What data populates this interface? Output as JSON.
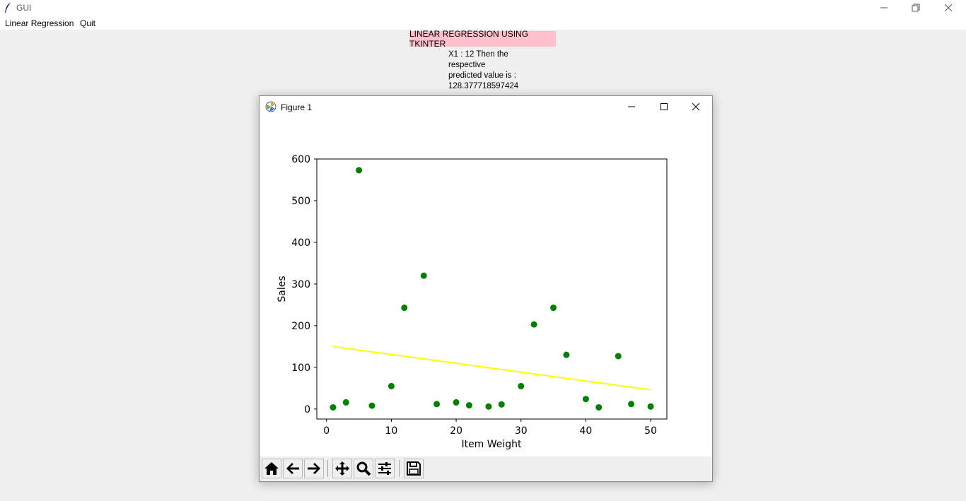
{
  "window": {
    "title": "GUI"
  },
  "menu": {
    "items": [
      "Linear Regression",
      "Quit"
    ]
  },
  "banner": {
    "text": "LINEAR REGRESSION USING TKINTER"
  },
  "result": {
    "lines": [
      "X1 : 12  Then the",
      "respective",
      "predicted value is :",
      "128.377718597424"
    ]
  },
  "figure": {
    "title": "Figure 1"
  },
  "colors": {
    "points": "#008000",
    "line": "#ffff00",
    "banner": "#ffc0cb"
  },
  "toolbar": {
    "buttons": [
      "home-icon",
      "back-arrow-icon",
      "forward-arrow-icon",
      "pan-icon",
      "zoom-icon",
      "configure-subplots-icon",
      "save-icon"
    ]
  },
  "chart_data": {
    "type": "scatter",
    "xlabel": "Item Weight",
    "ylabel": "Sales",
    "xlim": [
      -1.5,
      52.5
    ],
    "ylim": [
      -24,
      600
    ],
    "xticks": [
      0,
      10,
      20,
      30,
      40,
      50
    ],
    "yticks": [
      0,
      100,
      200,
      300,
      400,
      500,
      600
    ],
    "grid": false,
    "points": [
      {
        "x": 1,
        "y": 4
      },
      {
        "x": 3,
        "y": 16
      },
      {
        "x": 5,
        "y": 573
      },
      {
        "x": 7,
        "y": 8
      },
      {
        "x": 10,
        "y": 55
      },
      {
        "x": 12,
        "y": 243
      },
      {
        "x": 15,
        "y": 320
      },
      {
        "x": 17,
        "y": 12
      },
      {
        "x": 20,
        "y": 16
      },
      {
        "x": 22,
        "y": 9
      },
      {
        "x": 25,
        "y": 6
      },
      {
        "x": 27,
        "y": 11
      },
      {
        "x": 30,
        "y": 55
      },
      {
        "x": 32,
        "y": 203
      },
      {
        "x": 35,
        "y": 243
      },
      {
        "x": 37,
        "y": 130
      },
      {
        "x": 40,
        "y": 24
      },
      {
        "x": 42,
        "y": 4
      },
      {
        "x": 45,
        "y": 127
      },
      {
        "x": 47,
        "y": 12
      },
      {
        "x": 50,
        "y": 6
      }
    ],
    "regression_line": {
      "x": [
        1,
        50
      ],
      "y": [
        150,
        46
      ]
    }
  }
}
